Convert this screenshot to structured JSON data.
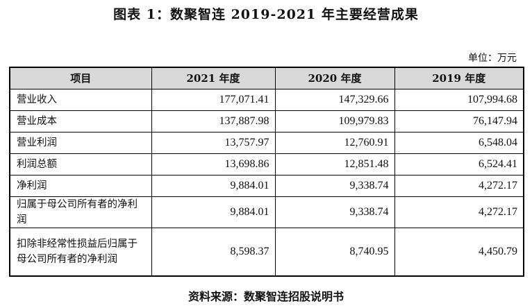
{
  "title": "图表 1：数聚智连 2019-2021 年主要经营成果",
  "unit": "单位：万元",
  "table": {
    "headers": [
      "项目",
      "2021 年度",
      "2020 年度",
      "2019 年度"
    ],
    "rows": [
      {
        "label": "营业收入",
        "v2021": "177,071.41",
        "v2020": "147,329.66",
        "v2019": "107,994.68"
      },
      {
        "label": "营业成本",
        "v2021": "137,887.98",
        "v2020": "109,979.83",
        "v2019": "76,147.94"
      },
      {
        "label": "营业利润",
        "v2021": "13,757.97",
        "v2020": "12,760.91",
        "v2019": "6,548.04"
      },
      {
        "label": "利润总额",
        "v2021": "13,698.86",
        "v2020": "12,851.48",
        "v2019": "6,524.41"
      },
      {
        "label": "净利润",
        "v2021": "9,884.01",
        "v2020": "9,338.74",
        "v2019": "4,272.17"
      },
      {
        "label": "归属于母公司所有者的净利润",
        "v2021": "9,884.01",
        "v2020": "9,338.74",
        "v2019": "4,272.17"
      },
      {
        "label": "扣除非经常性损益后归属于母公司所有者的净利润",
        "v2021": "8,598.37",
        "v2020": "8,740.95",
        "v2019": "4,450.79"
      }
    ]
  },
  "source": "资料来源：数聚智连招股说明书"
}
